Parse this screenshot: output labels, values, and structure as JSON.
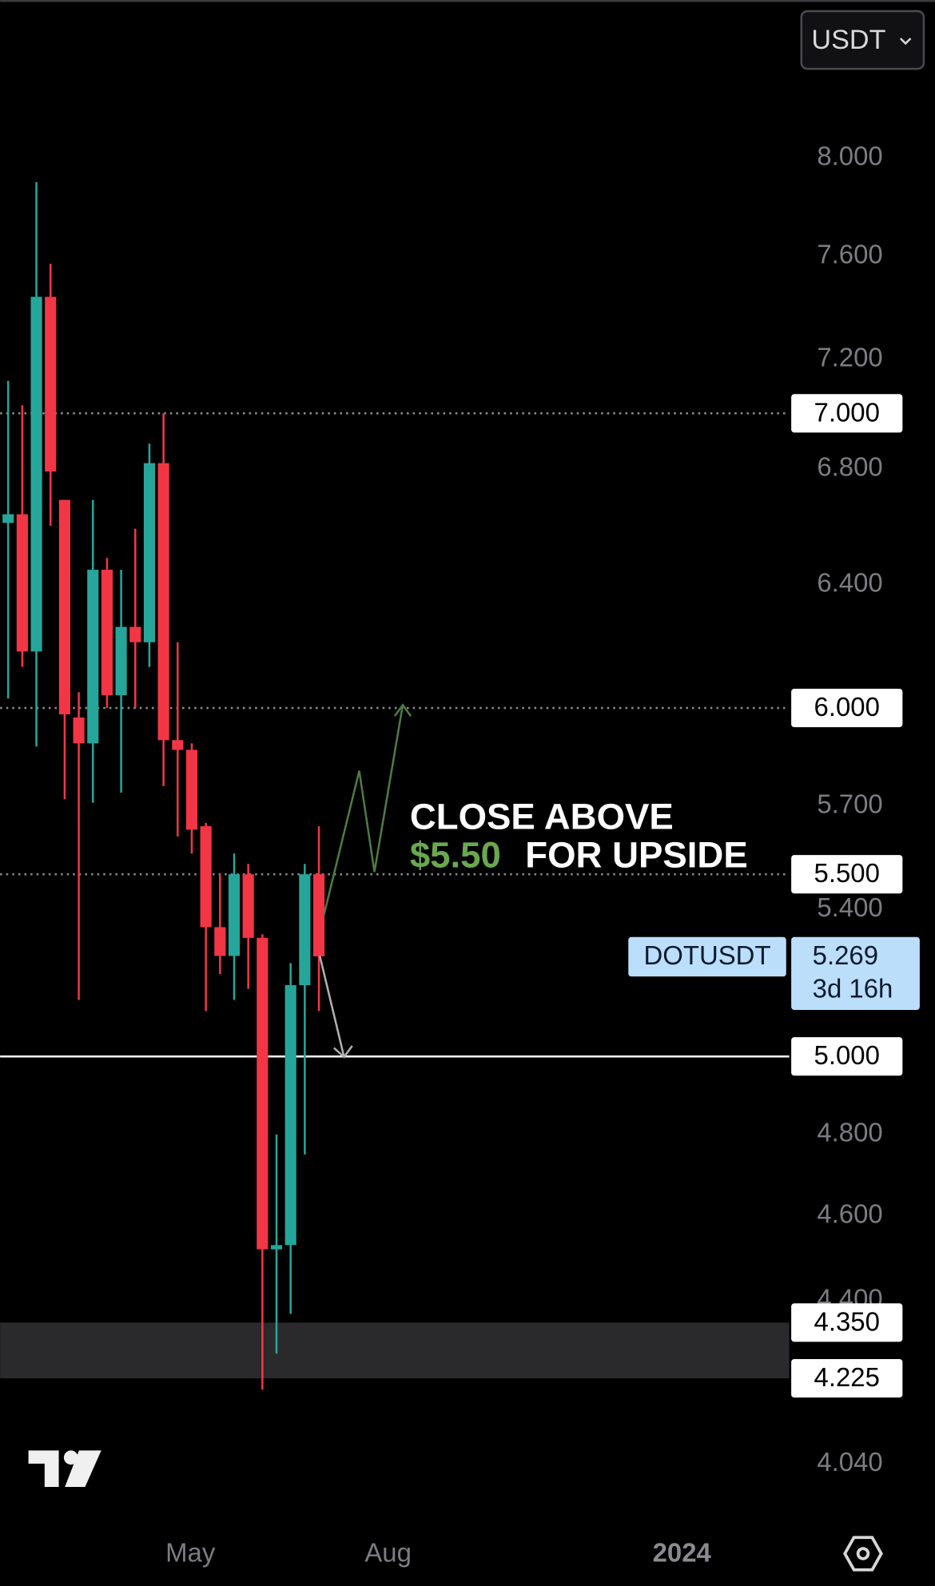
{
  "chart_data": {
    "type": "candlestick",
    "symbol_currency": "USDT",
    "log_scale": true,
    "up_color": "#26a69a",
    "down_color": "#f23645",
    "x": [
      0,
      1,
      2,
      3,
      4,
      5,
      6,
      7,
      8,
      9,
      10,
      11,
      12,
      13,
      14,
      15,
      16,
      17,
      18,
      19,
      20,
      21,
      22
    ],
    "open": [
      6.61,
      6.64,
      6.18,
      7.44,
      6.69,
      5.97,
      5.89,
      6.45,
      6.04,
      6.26,
      6.21,
      6.82,
      5.9,
      5.87,
      5.64,
      5.35,
      5.27,
      5.5,
      5.32,
      4.52,
      4.53,
      5.19,
      5.5
    ],
    "high": [
      7.12,
      7.03,
      7.9,
      7.57,
      6.69,
      6.05,
      6.69,
      6.49,
      6.45,
      6.59,
      6.89,
      7.0,
      6.21,
      5.89,
      5.65,
      5.5,
      5.56,
      5.53,
      5.33,
      4.8,
      5.25,
      5.53,
      5.64
    ],
    "low": [
      6.03,
      6.13,
      5.88,
      6.6,
      5.72,
      5.15,
      5.71,
      6.0,
      5.74,
      6.0,
      6.13,
      5.76,
      5.61,
      5.56,
      5.12,
      5.22,
      5.15,
      5.18,
      4.2,
      4.28,
      4.37,
      4.75,
      5.12
    ],
    "close": [
      6.64,
      6.18,
      7.44,
      6.79,
      5.98,
      5.89,
      6.45,
      6.04,
      6.26,
      6.21,
      6.82,
      5.9,
      5.87,
      5.63,
      5.35,
      5.27,
      5.5,
      5.32,
      4.52,
      4.53,
      5.19,
      5.5,
      5.269
    ],
    "xlim": [
      -0.57,
      55.3
    ],
    "xticks": [
      {
        "value": 12.9,
        "label": "May"
      },
      {
        "value": 26.9,
        "label": "Aug"
      },
      {
        "value": 47.7,
        "label": "2024"
      }
    ],
    "ylim": [
      3.79,
      8.69
    ],
    "yticks": [
      {
        "value": 8,
        "label": "8.000"
      },
      {
        "value": 7.6,
        "label": "7.600"
      },
      {
        "value": 7.2,
        "label": "7.200"
      },
      {
        "value": 6.8,
        "label": "6.800"
      },
      {
        "value": 6.4,
        "label": "6.400"
      },
      {
        "value": 5.7,
        "label": "5.700"
      },
      {
        "value": 5.4,
        "label": "5.400"
      },
      {
        "value": 4.8,
        "label": "4.800"
      },
      {
        "value": 4.6,
        "label": "4.600"
      },
      {
        "value": 4.4,
        "label": "4.400"
      },
      {
        "value": 4.04,
        "label": "4.040"
      }
    ],
    "levels": [
      {
        "value": 7,
        "label": "7.000",
        "style": "dotted"
      },
      {
        "value": 6,
        "label": "6.000",
        "style": "dotted"
      },
      {
        "value": 5.5,
        "label": "5.500",
        "style": "dotted"
      },
      {
        "value": 5,
        "label": "5.000",
        "style": "solid"
      }
    ],
    "zone": {
      "high": {
        "value": 4.35,
        "label": "4.350"
      },
      "low": {
        "value": 4.225,
        "label": "4.225"
      }
    },
    "current_price": {
      "symbol": "DOTUSDT",
      "value": 5.269,
      "countdown": "3d 16h"
    },
    "annotation": {
      "line1": "CLOSE ABOVE",
      "highlight": "$5.50",
      "line2": "FOR UPSIDE"
    }
  }
}
